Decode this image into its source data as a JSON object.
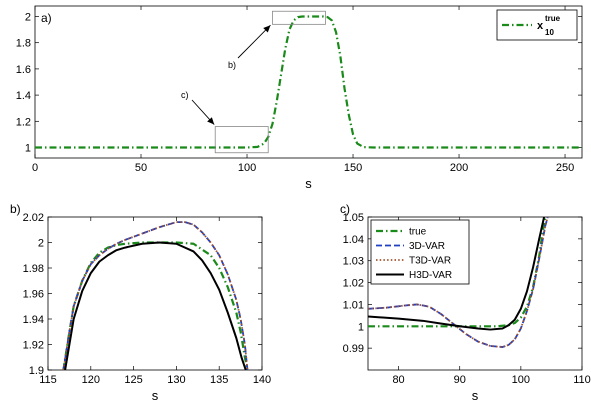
{
  "chart_data": [
    {
      "panel": "a",
      "type": "line",
      "panel_label": "a)",
      "xlabel": "s",
      "ylabel": "",
      "xlim": [
        0,
        258
      ],
      "ylim": [
        0.92,
        2.08
      ],
      "xticks": [
        0,
        50,
        100,
        150,
        200,
        250
      ],
      "yticks": [
        1,
        1.2,
        1.4,
        1.6,
        1.8,
        2
      ],
      "legend": {
        "position": "top-right",
        "label_main": "x",
        "label_super": "true",
        "label_sub": "10"
      },
      "colors": {
        "true": "#1a8a1a"
      },
      "series": [
        {
          "key": "true",
          "style": "dash-dot",
          "x": [
            0,
            100,
            105,
            108,
            110,
            112,
            114,
            116,
            118,
            120,
            122,
            124,
            126,
            128,
            136,
            138,
            140,
            142,
            144,
            146,
            148,
            150,
            152,
            155,
            160,
            258
          ],
          "y": [
            1,
            1,
            1.005,
            1.03,
            1.08,
            1.18,
            1.35,
            1.55,
            1.75,
            1.9,
            1.97,
            1.995,
            2,
            2,
            2,
            1.995,
            1.97,
            1.88,
            1.7,
            1.45,
            1.25,
            1.1,
            1.03,
            1.003,
            1,
            1
          ]
        }
      ],
      "annotations": [
        {
          "text": "b)",
          "box": {
            "x": [
              112,
              137
            ],
            "y": [
              1.94,
              2.04
            ]
          }
        },
        {
          "text": "c)",
          "box": {
            "x": [
              85,
              110
            ],
            "y": [
              0.96,
              1.16
            ]
          }
        }
      ]
    },
    {
      "panel": "b",
      "type": "line",
      "panel_label": "b)",
      "xlabel": "s",
      "ylabel": "",
      "xlim": [
        115,
        140
      ],
      "ylim": [
        1.9,
        2.02
      ],
      "xticks": [
        115,
        120,
        125,
        130,
        135,
        140
      ],
      "yticks": [
        1.9,
        1.92,
        1.94,
        1.96,
        1.98,
        2,
        2.02
      ],
      "colors": {
        "true": "#1a8a1a",
        "3dvar": "#1f3fc4",
        "t3dvar": "#a0522d",
        "h3dvar": "#000000"
      },
      "series": [
        {
          "key": "true",
          "style": "dash-dot",
          "x": [
            116.8,
            117.5,
            118,
            119,
            120,
            121,
            122,
            123,
            124,
            126,
            128,
            130,
            132,
            134,
            135,
            136,
            137,
            137.5,
            138,
            138.3
          ],
          "y": [
            1.9,
            1.93,
            1.95,
            1.97,
            1.984,
            1.992,
            1.996,
            1.998,
            1.999,
            2,
            2,
            2,
            1.999,
            1.99,
            1.98,
            1.965,
            1.945,
            1.93,
            1.91,
            1.9
          ]
        },
        {
          "key": "3dvar",
          "style": "dashed",
          "x": [
            116.8,
            117.5,
            118,
            119,
            120,
            121,
            122,
            123,
            124,
            126,
            128,
            130,
            131,
            132,
            133,
            134,
            135,
            136,
            137,
            137.5,
            138,
            138.3
          ],
          "y": [
            1.9,
            1.93,
            1.95,
            1.97,
            1.983,
            1.99,
            1.995,
            1.999,
            2.002,
            2.007,
            2.012,
            2.016,
            2.016,
            2.014,
            2.008,
            2.0,
            1.99,
            1.975,
            1.955,
            1.94,
            1.92,
            1.9
          ]
        },
        {
          "key": "t3dvar",
          "style": "dotted",
          "x": [
            116.8,
            117.5,
            118,
            119,
            120,
            121,
            122,
            123,
            124,
            126,
            128,
            130,
            131,
            132,
            133,
            134,
            135,
            136,
            137,
            137.5,
            138,
            138.3
          ],
          "y": [
            1.9,
            1.93,
            1.95,
            1.97,
            1.983,
            1.99,
            1.995,
            1.999,
            2.002,
            2.007,
            2.012,
            2.016,
            2.016,
            2.014,
            2.008,
            2.0,
            1.99,
            1.975,
            1.955,
            1.94,
            1.92,
            1.9
          ]
        },
        {
          "key": "h3dvar",
          "style": "solid",
          "x": [
            117.0,
            118,
            119,
            120,
            121,
            122,
            123,
            124,
            126,
            128,
            130,
            132,
            133,
            134,
            135,
            136,
            137,
            137.6,
            138.1
          ],
          "y": [
            1.9,
            1.94,
            1.962,
            1.976,
            1.985,
            1.99,
            1.994,
            1.996,
            1.999,
            2.0,
            1.999,
            1.993,
            1.986,
            1.976,
            1.963,
            1.945,
            1.925,
            1.91,
            1.9
          ]
        }
      ]
    },
    {
      "panel": "c",
      "type": "line",
      "panel_label": "c)",
      "xlabel": "s",
      "ylabel": "",
      "xlim": [
        75,
        110
      ],
      "ylim": [
        0.98,
        1.05
      ],
      "xticks": [
        80,
        90,
        100,
        110
      ],
      "yticks": [
        0.99,
        1,
        1.01,
        1.02,
        1.03,
        1.04,
        1.05
      ],
      "legend": {
        "position": "top-left"
      },
      "colors": {
        "true": "#1a8a1a",
        "3dvar": "#1f3fc4",
        "t3dvar": "#a0522d",
        "h3dvar": "#000000"
      },
      "series": [
        {
          "key": "true",
          "name": "true",
          "style": "dash-dot",
          "x": [
            75,
            96,
            98,
            99,
            100,
            101,
            102,
            103,
            103.6,
            104
          ],
          "y": [
            1,
            1,
            1.0005,
            1.0015,
            1.004,
            1.009,
            1.018,
            1.032,
            1.044,
            1.05
          ]
        },
        {
          "key": "3dvar",
          "name": "3D-VAR",
          "style": "dashed",
          "x": [
            75,
            78,
            81,
            83,
            85,
            87,
            89,
            91,
            93,
            95,
            97,
            98,
            99,
            100,
            101,
            102,
            103,
            104,
            104.4
          ],
          "y": [
            1.008,
            1.0085,
            1.0095,
            1.01,
            1.009,
            1.0055,
            1.001,
            0.9965,
            0.993,
            0.991,
            0.9905,
            0.9915,
            0.994,
            0.999,
            1.007,
            1.017,
            1.031,
            1.046,
            1.05
          ]
        },
        {
          "key": "t3dvar",
          "name": "T3D-VAR",
          "style": "dotted",
          "x": [
            75,
            78,
            81,
            83,
            85,
            87,
            89,
            91,
            93,
            95,
            97,
            98,
            99,
            100,
            101,
            102,
            103,
            104,
            104.4
          ],
          "y": [
            1.008,
            1.0085,
            1.0095,
            1.01,
            1.009,
            1.0055,
            1.001,
            0.9965,
            0.993,
            0.991,
            0.9905,
            0.9915,
            0.994,
            0.999,
            1.007,
            1.017,
            1.031,
            1.046,
            1.05
          ]
        },
        {
          "key": "h3dvar",
          "name": "H3D-VAR",
          "style": "solid",
          "x": [
            75,
            80,
            84,
            87,
            90,
            93,
            95,
            97,
            98,
            99,
            100,
            101,
            102,
            103,
            103.8
          ],
          "y": [
            1.0045,
            1.0035,
            1.0025,
            1.0012,
            1.0,
            0.999,
            0.9985,
            0.999,
            1.0005,
            1.003,
            1.008,
            1.016,
            1.027,
            1.04,
            1.05
          ]
        }
      ]
    }
  ]
}
